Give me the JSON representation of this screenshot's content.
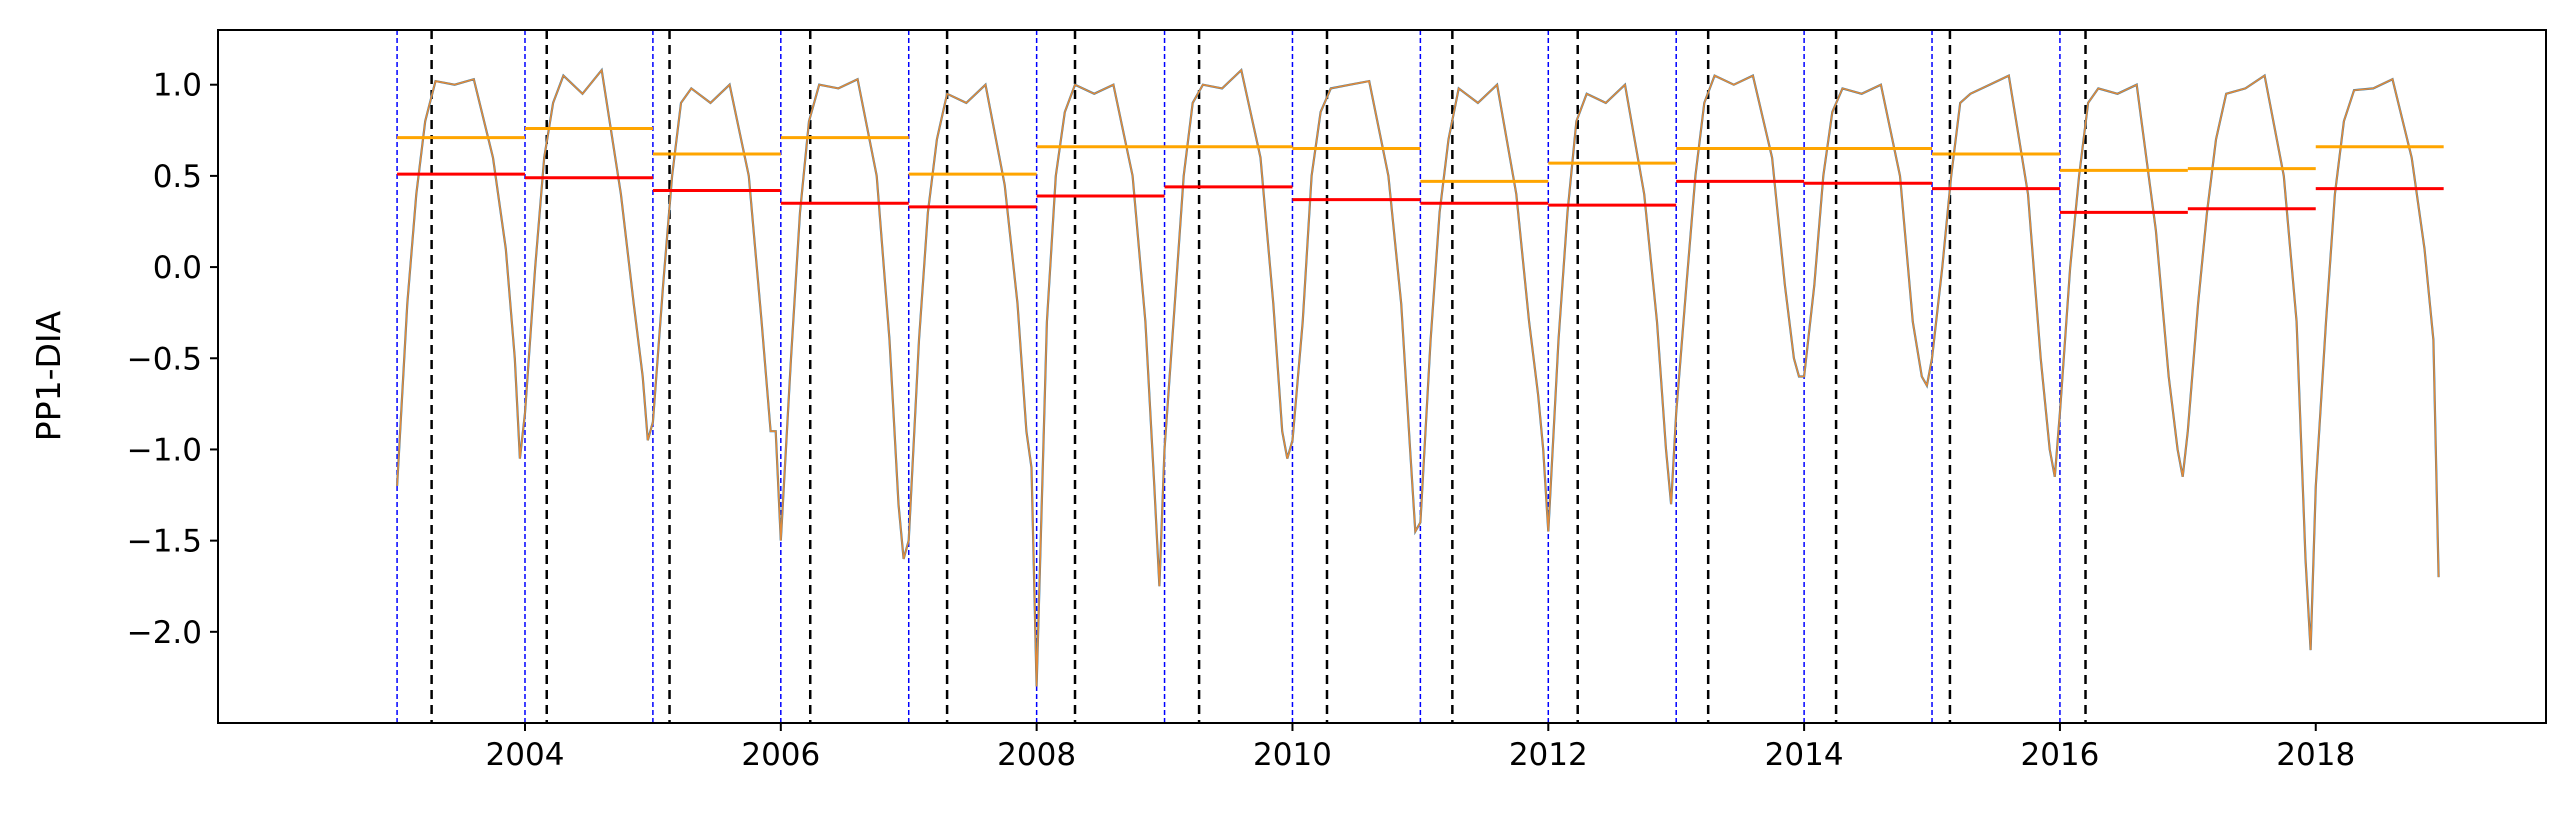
{
  "chart_data": {
    "type": "line",
    "title": "",
    "xlabel": "",
    "ylabel": "PP1-DIA",
    "xlim": [
      2001.6,
      2019.8
    ],
    "ylim": [
      -2.5,
      1.3
    ],
    "grid": false,
    "x_ticks": [
      2004,
      2006,
      2008,
      2010,
      2012,
      2014,
      2016,
      2018
    ],
    "x_tick_labels": [
      "2004",
      "2006",
      "2008",
      "2010",
      "2012",
      "2014",
      "2016",
      "2018"
    ],
    "y_ticks": [
      1.0,
      0.5,
      0.0,
      -0.5,
      -1.0,
      -1.5,
      -2.0
    ],
    "y_tick_labels": [
      "1.0",
      "0.5",
      "0.0",
      "−0.5",
      "−1.0",
      "−1.5",
      "−2.0"
    ],
    "colors": {
      "series_blue": "#1f77b4",
      "series_orange": "#e08a3a",
      "mean_upper": "#ffa500",
      "mean_lower": "#ff0000",
      "year_start_lines": "#0000ff",
      "event_lines": "#000000"
    },
    "year_start_lines": [
      2003,
      2004,
      2005,
      2006,
      2007,
      2008,
      2009,
      2010,
      2011,
      2012,
      2013,
      2014,
      2015,
      2016
    ],
    "event_lines": [
      2003.27,
      2004.17,
      2005.13,
      2006.23,
      2007.3,
      2008.3,
      2009.27,
      2010.27,
      2011.25,
      2012.23,
      2013.25,
      2014.25,
      2015.14,
      2016.2
    ],
    "yearly_mean_upper": [
      {
        "year": 2003,
        "value": 0.71
      },
      {
        "year": 2004,
        "value": 0.76
      },
      {
        "year": 2005,
        "value": 0.62
      },
      {
        "year": 2006,
        "value": 0.71
      },
      {
        "year": 2007,
        "value": 0.51
      },
      {
        "year": 2008,
        "value": 0.66
      },
      {
        "year": 2009,
        "value": 0.66
      },
      {
        "year": 2010,
        "value": 0.65
      },
      {
        "year": 2011,
        "value": 0.47
      },
      {
        "year": 2012,
        "value": 0.57
      },
      {
        "year": 2013,
        "value": 0.65
      },
      {
        "year": 2014,
        "value": 0.65
      },
      {
        "year": 2015,
        "value": 0.62
      },
      {
        "year": 2016,
        "value": 0.53
      },
      {
        "year": 2017,
        "value": 0.54
      },
      {
        "year": 2018,
        "value": 0.66
      }
    ],
    "yearly_mean_lower": [
      {
        "year": 2003,
        "value": 0.51
      },
      {
        "year": 2004,
        "value": 0.49
      },
      {
        "year": 2005,
        "value": 0.42
      },
      {
        "year": 2006,
        "value": 0.35
      },
      {
        "year": 2007,
        "value": 0.33
      },
      {
        "year": 2008,
        "value": 0.39
      },
      {
        "year": 2009,
        "value": 0.44
      },
      {
        "year": 2010,
        "value": 0.37
      },
      {
        "year": 2011,
        "value": 0.35
      },
      {
        "year": 2012,
        "value": 0.34
      },
      {
        "year": 2013,
        "value": 0.47
      },
      {
        "year": 2014,
        "value": 0.46
      },
      {
        "year": 2015,
        "value": 0.43
      },
      {
        "year": 2016,
        "value": 0.3
      },
      {
        "year": 2017,
        "value": 0.32
      },
      {
        "year": 2018,
        "value": 0.43
      }
    ],
    "series": [
      {
        "x": [
          2003.0,
          2003.08,
          2003.15,
          2003.22,
          2003.3,
          2003.45,
          2003.6,
          2003.75,
          2003.85,
          2003.92,
          2003.96,
          2004.0,
          2004.08,
          2004.15,
          2004.22,
          2004.3,
          2004.45,
          2004.6,
          2004.75,
          2004.85,
          2004.92,
          2004.96,
          2005.0,
          2005.08,
          2005.15,
          2005.22,
          2005.3,
          2005.45,
          2005.6,
          2005.75,
          2005.85,
          2005.92,
          2005.96,
          2006.0,
          2006.08,
          2006.15,
          2006.22,
          2006.3,
          2006.45,
          2006.6,
          2006.75,
          2006.85,
          2006.92,
          2006.96,
          2007.0,
          2007.08,
          2007.15,
          2007.22,
          2007.3,
          2007.45,
          2007.6,
          2007.75,
          2007.85,
          2007.92,
          2007.96,
          2008.0,
          2008.08,
          2008.15,
          2008.22,
          2008.3,
          2008.45,
          2008.6,
          2008.75,
          2008.85,
          2008.92,
          2008.96,
          2009.0,
          2009.08,
          2009.15,
          2009.22,
          2009.3,
          2009.45,
          2009.6,
          2009.75,
          2009.85,
          2009.92,
          2009.96,
          2010.0,
          2010.08,
          2010.15,
          2010.22,
          2010.3,
          2010.45,
          2010.6,
          2010.75,
          2010.85,
          2010.92,
          2010.96,
          2011.0,
          2011.08,
          2011.15,
          2011.22,
          2011.3,
          2011.45,
          2011.6,
          2011.75,
          2011.85,
          2011.92,
          2011.96,
          2012.0,
          2012.08,
          2012.15,
          2012.22,
          2012.3,
          2012.45,
          2012.6,
          2012.75,
          2012.85,
          2012.92,
          2012.96,
          2013.0,
          2013.08,
          2013.15,
          2013.22,
          2013.3,
          2013.45,
          2013.6,
          2013.75,
          2013.85,
          2013.92,
          2013.96,
          2014.0,
          2014.08,
          2014.15,
          2014.22,
          2014.3,
          2014.45,
          2014.6,
          2014.75,
          2014.85,
          2014.92,
          2014.96,
          2015.0,
          2015.08,
          2015.15,
          2015.22,
          2015.3,
          2015.45,
          2015.6,
          2015.75,
          2015.85,
          2015.92,
          2015.96,
          2016.0,
          2016.08,
          2016.15,
          2016.22,
          2016.3,
          2016.45,
          2016.6,
          2016.75,
          2016.85,
          2016.92,
          2016.96,
          2017.0,
          2017.08,
          2017.15,
          2017.22,
          2017.3,
          2017.45,
          2017.6,
          2017.75,
          2017.85,
          2017.92,
          2017.96,
          2018.0,
          2018.08,
          2018.15,
          2018.22,
          2018.3,
          2018.45,
          2018.6,
          2018.75,
          2018.85,
          2018.92,
          2018.96
        ],
        "y": [
          -1.2,
          -0.2,
          0.4,
          0.8,
          1.02,
          1.0,
          1.03,
          0.6,
          0.1,
          -0.5,
          -1.05,
          -0.8,
          0.0,
          0.6,
          0.9,
          1.05,
          0.95,
          1.08,
          0.4,
          -0.2,
          -0.6,
          -0.95,
          -0.85,
          -0.1,
          0.5,
          0.9,
          0.98,
          0.9,
          1.0,
          0.5,
          -0.3,
          -0.9,
          -0.9,
          -1.5,
          -0.5,
          0.3,
          0.8,
          1.0,
          0.98,
          1.03,
          0.5,
          -0.4,
          -1.3,
          -1.6,
          -1.5,
          -0.4,
          0.3,
          0.7,
          0.95,
          0.9,
          1.0,
          0.45,
          -0.2,
          -0.9,
          -1.1,
          -2.3,
          -0.3,
          0.5,
          0.85,
          1.0,
          0.95,
          1.0,
          0.5,
          -0.3,
          -1.2,
          -1.75,
          -1.0,
          -0.2,
          0.5,
          0.9,
          1.0,
          0.98,
          1.08,
          0.6,
          -0.2,
          -0.9,
          -1.05,
          -0.95,
          -0.3,
          0.5,
          0.85,
          0.98,
          1.0,
          1.02,
          0.5,
          -0.2,
          -1.0,
          -1.45,
          -1.4,
          -0.4,
          0.3,
          0.7,
          0.98,
          0.9,
          1.0,
          0.4,
          -0.3,
          -0.7,
          -1.0,
          -1.45,
          -0.4,
          0.3,
          0.8,
          0.95,
          0.9,
          1.0,
          0.4,
          -0.3,
          -1.0,
          -1.3,
          -0.8,
          -0.1,
          0.5,
          0.9,
          1.05,
          1.0,
          1.05,
          0.6,
          -0.1,
          -0.5,
          -0.6,
          -0.6,
          -0.1,
          0.5,
          0.85,
          0.98,
          0.95,
          1.0,
          0.5,
          -0.3,
          -0.6,
          -0.65,
          -0.5,
          0.0,
          0.5,
          0.9,
          0.95,
          1.0,
          1.05,
          0.4,
          -0.5,
          -1.0,
          -1.15,
          -0.8,
          0.0,
          0.5,
          0.9,
          0.98,
          0.95,
          1.0,
          0.2,
          -0.6,
          -1.0,
          -1.15,
          -0.9,
          -0.2,
          0.3,
          0.7,
          0.95,
          0.98,
          1.05,
          0.5,
          -0.3,
          -1.6,
          -2.1,
          -1.2,
          -0.3,
          0.4,
          0.8,
          0.97,
          0.98,
          1.03,
          0.6,
          0.1,
          -0.4,
          -1.7
        ]
      }
    ]
  }
}
